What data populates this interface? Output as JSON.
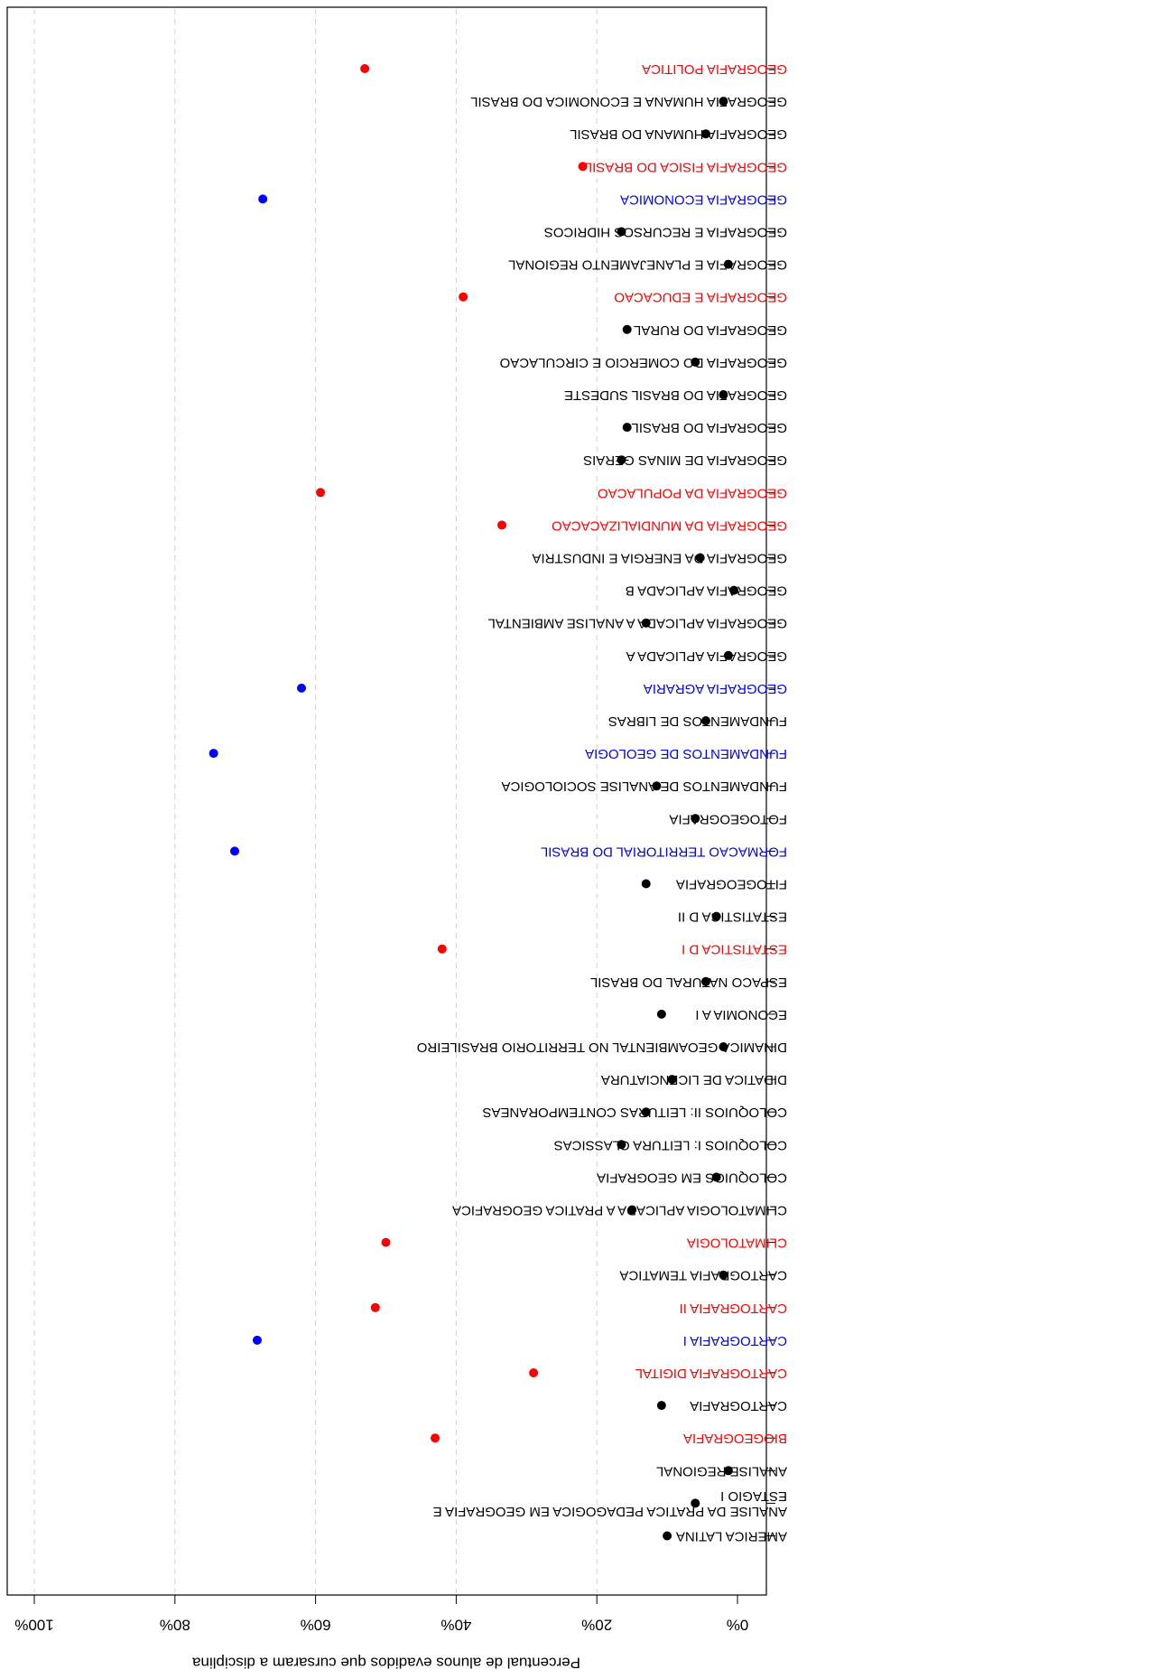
{
  "chart_data": {
    "type": "scatter",
    "orientation": "rotated-180",
    "xlabel": "Percentual de alunos evadidos que cursaram a disciplina",
    "xlim": [
      0,
      100
    ],
    "xticks": [
      "0%",
      "20%",
      "40%",
      "60%",
      "80%",
      "100%"
    ],
    "grid": "vertical-dashed",
    "colors": {
      "black": "#000000",
      "red": "#ff0000",
      "blue": "#0000ff",
      "grid": "#d3d3d3"
    },
    "points": [
      {
        "label": "GEOGRAFIA POLITICA",
        "value": 53.0,
        "color": "red"
      },
      {
        "label": "GEOGRAFIA HUMANA E ECONOMICA DO BRASIL",
        "value": 2.0,
        "color": "black"
      },
      {
        "label": "GEOGRAFIA HUMANA DO BRASIL",
        "value": 4.5,
        "color": "black"
      },
      {
        "label": "GEOGRAFIA FISICA DO BRASIL",
        "value": 22.0,
        "color": "red"
      },
      {
        "label": "GEOGRAFIA ECONOMICA",
        "value": 67.5,
        "color": "blue"
      },
      {
        "label": "GEOGRAFIA E RECURSOS HIDRICOS",
        "value": 16.5,
        "color": "black"
      },
      {
        "label": "GEOGRAFIA E PLANEJAMENTO REGIONAL",
        "value": 1.3,
        "color": "black"
      },
      {
        "label": "GEOGRAFIA E EDUCACAO",
        "value": 39.0,
        "color": "red"
      },
      {
        "label": "GEOGRAFIA DO RURAL",
        "value": 15.7,
        "color": "black"
      },
      {
        "label": "GEOGRAFIA DO COMERCIO E CIRCULACAO",
        "value": 6.0,
        "color": "black"
      },
      {
        "label": "GEOGRAFIA DO BRASIL SUDESTE",
        "value": 2.0,
        "color": "black"
      },
      {
        "label": "GEOGRAFIA DO BRASIL",
        "value": 15.7,
        "color": "black"
      },
      {
        "label": "GEOGRAFIA DE MINAS GERAIS",
        "value": 16.5,
        "color": "black"
      },
      {
        "label": "GEOGRAFIA DA POPULACAO",
        "value": 59.3,
        "color": "red"
      },
      {
        "label": "GEOGRAFIA DA MUNDIALIZACACAO",
        "value": 33.5,
        "color": "red"
      },
      {
        "label": "GEOGRAFIA DA ENERGIA E INDUSTRIA",
        "value": 5.3,
        "color": "black"
      },
      {
        "label": "GEOGRAFIA APLICADA B",
        "value": 0.5,
        "color": "black"
      },
      {
        "label": "GEOGRAFIA APLICADA A ANALISE AMBIENTAL",
        "value": 13.0,
        "color": "black"
      },
      {
        "label": "GEOGRAFIA APLICADA A",
        "value": 1.3,
        "color": "black"
      },
      {
        "label": "GEOGRAFIA AGRARIA",
        "value": 62.0,
        "color": "blue"
      },
      {
        "label": "FUNDAMENTOS DE LIBRAS",
        "value": 4.5,
        "color": "black"
      },
      {
        "label": "FUNDAMENTOS DE GEOLOGIA",
        "value": 74.5,
        "color": "blue"
      },
      {
        "label": "FUNDAMENTOS DE ANALISE SOCIOLOGICA",
        "value": 11.5,
        "color": "black"
      },
      {
        "label": "FOTOGEOGRAFIA",
        "value": 6.0,
        "color": "black"
      },
      {
        "label": "FORMACAO TERRITORIAL DO BRASIL",
        "value": 71.5,
        "color": "blue"
      },
      {
        "label": "FITOGEOGRAFIA",
        "value": 13.0,
        "color": "black"
      },
      {
        "label": "ESTATISTICA D II",
        "value": 3.0,
        "color": "black"
      },
      {
        "label": "ESTATISTICA D I",
        "value": 42.0,
        "color": "red"
      },
      {
        "label": "ESPACO NATURAL DO BRASIL",
        "value": 4.5,
        "color": "black"
      },
      {
        "label": "ECONOMIA A I",
        "value": 10.8,
        "color": "black"
      },
      {
        "label": "DINAMICA GEOAMBIENTAL NO TERRITORIO BRASILEIRO",
        "value": 2.0,
        "color": "black"
      },
      {
        "label": "DIDATICA DE LICENCIATURA",
        "value": 9.3,
        "color": "black"
      },
      {
        "label": "COLOQUIOS II: LEITURAS CONTEMPORANEAS",
        "value": 13.0,
        "color": "black"
      },
      {
        "label": "COLOQUIOS I: LEITURA CLASSICAS",
        "value": 16.5,
        "color": "black"
      },
      {
        "label": "COLOQUIOS EM GEOGRAFIA",
        "value": 3.0,
        "color": "black"
      },
      {
        "label": "CLIMATOLOGIA APLICADA A PRATICA GEOGRAFICA",
        "value": 15.0,
        "color": "black"
      },
      {
        "label": "CLIMATOLOGIA",
        "value": 50.0,
        "color": "red"
      },
      {
        "label": "CARTOGRAFIA TEMATICA",
        "value": 2.0,
        "color": "black"
      },
      {
        "label": "CARTOGRAFIA II",
        "value": 51.5,
        "color": "red"
      },
      {
        "label": "CARTOGRAFIA I",
        "value": 68.3,
        "color": "blue"
      },
      {
        "label": "CARTOGRAFIA DIGITAL",
        "value": 29.0,
        "color": "red"
      },
      {
        "label": "CARTOGRAFIA",
        "value": 10.8,
        "color": "black"
      },
      {
        "label": "BIOGEOGRAFIA",
        "value": 43.0,
        "color": "red"
      },
      {
        "label": "ANALISE REGIONAL",
        "value": 1.3,
        "color": "black"
      },
      {
        "label": "ANALISE DA PRATICA PEDAGOGICA EM GEOGRAFIA E ESTAGIO I",
        "lines": [
          "ANALISE DA PRATICA PEDAGOGICA EM GEOGRAFIA E",
          "ESTAGIO I"
        ],
        "value": 6.0,
        "color": "black"
      },
      {
        "label": "AMERICA LATINA",
        "value": 10.0,
        "color": "black"
      }
    ]
  }
}
